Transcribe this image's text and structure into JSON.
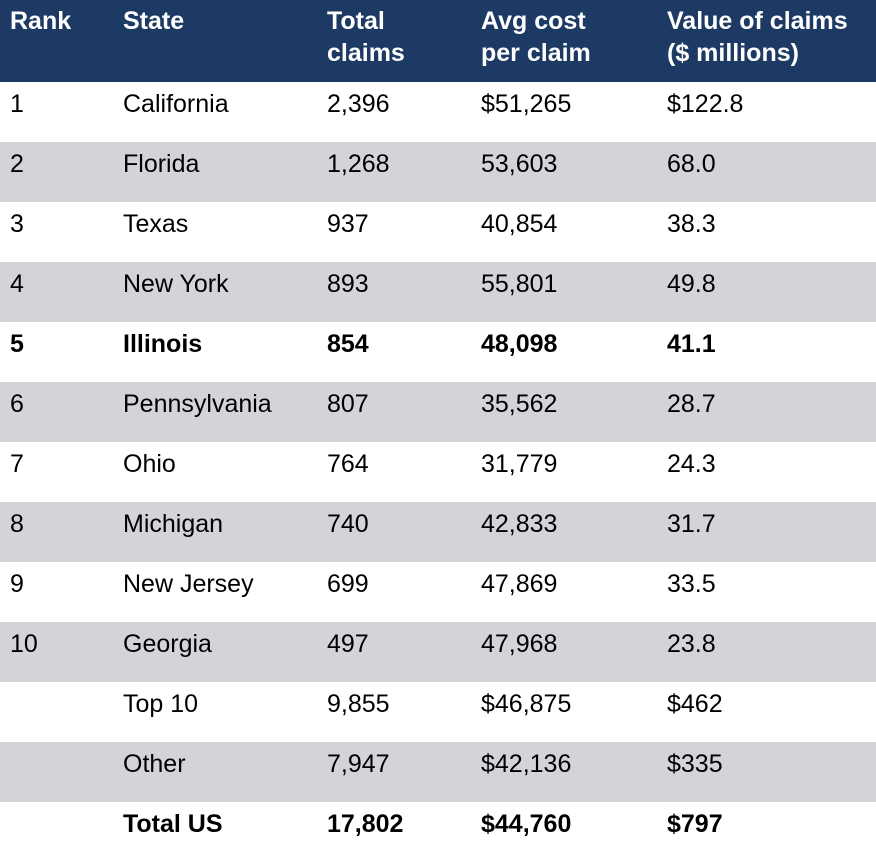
{
  "table": {
    "headers": [
      "Rank",
      "State",
      "Total\nclaims",
      "Avg cost\nper claim",
      "Value of claims\n($ millions)"
    ],
    "rows": [
      {
        "cells": [
          "1",
          "California",
          "2,396",
          "$51,265",
          "$122.8"
        ],
        "shaded": false,
        "bold": false
      },
      {
        "cells": [
          "2",
          "Florida",
          "1,268",
          "53,603",
          "68.0"
        ],
        "shaded": true,
        "bold": false
      },
      {
        "cells": [
          "3",
          "Texas",
          "937",
          "40,854",
          "38.3"
        ],
        "shaded": false,
        "bold": false
      },
      {
        "cells": [
          "4",
          "New York",
          "893",
          "55,801",
          "49.8"
        ],
        "shaded": true,
        "bold": false
      },
      {
        "cells": [
          "5",
          "Illinois",
          "854",
          "48,098",
          "41.1"
        ],
        "shaded": false,
        "bold": true
      },
      {
        "cells": [
          "6",
          "Pennsylvania",
          "807",
          "35,562",
          "28.7"
        ],
        "shaded": true,
        "bold": false
      },
      {
        "cells": [
          "7",
          "Ohio",
          "764",
          "31,779",
          "24.3"
        ],
        "shaded": false,
        "bold": false
      },
      {
        "cells": [
          "8",
          "Michigan",
          "740",
          "42,833",
          "31.7"
        ],
        "shaded": true,
        "bold": false
      },
      {
        "cells": [
          "9",
          "New Jersey",
          "699",
          "47,869",
          "33.5"
        ],
        "shaded": false,
        "bold": false
      },
      {
        "cells": [
          "10",
          "Georgia",
          "497",
          "47,968",
          "23.8"
        ],
        "shaded": true,
        "bold": false
      },
      {
        "cells": [
          "",
          "Top 10",
          "9,855",
          "$46,875",
          "$462"
        ],
        "shaded": false,
        "bold": false
      },
      {
        "cells": [
          "",
          "Other",
          "7,947",
          "$42,136",
          "$335"
        ],
        "shaded": true,
        "bold": false
      },
      {
        "cells": [
          "",
          "Total US",
          "17,802",
          "$44,760",
          "$797"
        ],
        "shaded": false,
        "bold": true
      }
    ]
  },
  "colors": {
    "header_bg": "#1c3a63",
    "header_text": "#ffffff",
    "shaded_row": "#d3d4d9"
  }
}
